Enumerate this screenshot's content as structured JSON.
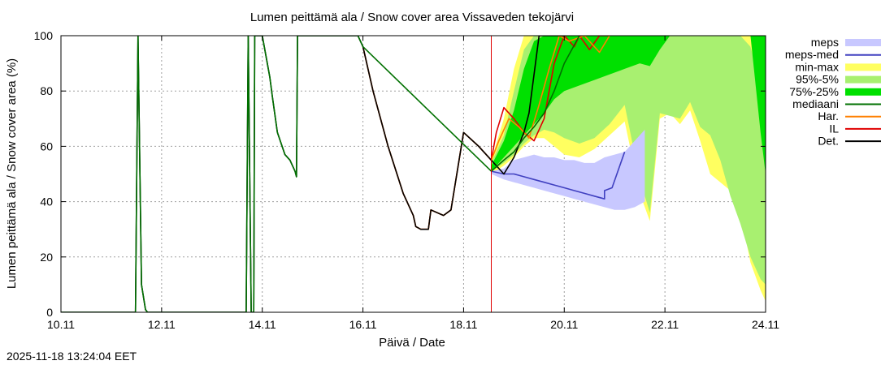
{
  "chart_data": {
    "type": "area",
    "title": "Lumen peittämä ala / Snow cover area Vissaveden tekojärvi",
    "xlabel": "Päivä / Date",
    "ylabel": "Lumen peittämä ala / Snow cover area (%)",
    "xlim_days": [
      0,
      14
    ],
    "ylim": [
      0,
      100
    ],
    "x_ticks": [
      {
        "day": 0,
        "label": "10.11"
      },
      {
        "day": 2,
        "label": "12.11"
      },
      {
        "day": 4,
        "label": "14.11"
      },
      {
        "day": 6,
        "label": "16.11"
      },
      {
        "day": 8,
        "label": "18.11"
      },
      {
        "day": 10,
        "label": "20.11"
      },
      {
        "day": 12,
        "label": "22.11"
      },
      {
        "day": 14,
        "label": "24.11"
      }
    ],
    "y_ticks": [
      0,
      20,
      40,
      60,
      80,
      100
    ],
    "grid": true,
    "forecast_start_day": 8.55,
    "forecast_line_color": "#e00000",
    "legend_position": "right",
    "legend": [
      {
        "label": "meps",
        "kind": "band",
        "color": "#c8c8ff"
      },
      {
        "label": "meps-med",
        "kind": "line",
        "color": "#4040c0"
      },
      {
        "label": "min-max",
        "kind": "band",
        "color": "#ffff60"
      },
      {
        "label": "95%-5%",
        "kind": "band",
        "color": "#a8f070"
      },
      {
        "label": "75%-25%",
        "kind": "band",
        "color": "#00e000"
      },
      {
        "label": "mediaani",
        "kind": "line",
        "color": "#007000"
      },
      {
        "label": "Har.",
        "kind": "line",
        "color": "#ff8000"
      },
      {
        "label": "IL",
        "kind": "line",
        "color": "#e00000"
      },
      {
        "label": "Det.",
        "kind": "line",
        "color": "#000000"
      }
    ],
    "bands": {
      "min_max": {
        "x": [
          8.55,
          8.8,
          9.0,
          9.2,
          9.4,
          9.6,
          9.8,
          10.0,
          10.3,
          10.6,
          10.9,
          11.2,
          11.5,
          11.7,
          11.9,
          12.1,
          12.3,
          12.5,
          12.7,
          12.9,
          13.1,
          13.3,
          13.5,
          13.7,
          13.9,
          14.0
        ],
        "lower": [
          50,
          53,
          56,
          60,
          63,
          63,
          60,
          57,
          56,
          59,
          64,
          69,
          43,
          33,
          70,
          72,
          68,
          73,
          62,
          50,
          47,
          44,
          36,
          18,
          8,
          4
        ],
        "upper": [
          55,
          70,
          88,
          100,
          100,
          100,
          100,
          100,
          100,
          100,
          100,
          100,
          100,
          100,
          100,
          100,
          100,
          100,
          100,
          100,
          100,
          100,
          100,
          100,
          100,
          100
        ]
      },
      "p95_p5": {
        "x": [
          8.55,
          8.8,
          9.0,
          9.2,
          9.4,
          9.6,
          9.8,
          10.0,
          10.3,
          10.6,
          10.9,
          11.2,
          11.5,
          11.7,
          11.9,
          12.1,
          12.3,
          12.5,
          12.7,
          12.9,
          13.1,
          13.3,
          13.5,
          13.7,
          13.9,
          14.0
        ],
        "lower": [
          51,
          54,
          57,
          61,
          64,
          66,
          65,
          63,
          61,
          63,
          68,
          75,
          48,
          36,
          72,
          71,
          70,
          76,
          67,
          64,
          55,
          42,
          32,
          20,
          12,
          10
        ],
        "upper": [
          54,
          64,
          80,
          95,
          100,
          100,
          100,
          100,
          100,
          100,
          100,
          100,
          100,
          100,
          100,
          100,
          100,
          100,
          100,
          100,
          100,
          100,
          100,
          96,
          82,
          72
        ]
      },
      "p75_p25": {
        "x": [
          8.55,
          8.8,
          9.0,
          9.2,
          9.4,
          9.6,
          9.8,
          10.0,
          10.3,
          10.6,
          10.9,
          11.2,
          11.5,
          11.7,
          11.9,
          12.1,
          12.3,
          12.5,
          12.7,
          12.9,
          13.1,
          13.3,
          13.5,
          13.7,
          13.9,
          14.0
        ],
        "lower": [
          51,
          56,
          60,
          64,
          68,
          72,
          77,
          80,
          82,
          84,
          86,
          88,
          90,
          89,
          95,
          100,
          100,
          100,
          100,
          100,
          100,
          100,
          100,
          100,
          65,
          50
        ],
        "upper": [
          53,
          62,
          73,
          88,
          98,
          100,
          100,
          100,
          100,
          100,
          100,
          100,
          100,
          100,
          100,
          100,
          100,
          100,
          100,
          100,
          100,
          100,
          100,
          100,
          100,
          100
        ]
      },
      "meps": {
        "x": [
          8.55,
          8.8,
          9.0,
          9.2,
          9.4,
          9.6,
          9.8,
          10.0,
          10.2,
          10.4,
          10.6,
          10.8,
          11.0,
          11.2,
          11.4,
          11.6
        ],
        "lower": [
          50,
          48,
          47,
          46,
          45,
          44,
          43,
          42,
          41,
          40,
          39,
          38,
          37,
          37,
          38,
          40
        ],
        "upper": [
          51,
          52,
          55,
          56,
          57,
          56,
          56,
          55,
          55,
          54,
          54,
          56,
          57,
          58,
          62,
          66
        ]
      }
    },
    "series": [
      {
        "name": "Det.",
        "color": "#000000",
        "x": [
          0,
          1.48,
          1.53,
          1.6,
          1.68,
          1.72,
          3.68,
          3.72,
          3.78,
          3.83,
          3.85,
          3.88,
          4.0,
          4.15,
          4.2,
          4.3,
          4.45,
          4.55,
          4.6,
          4.65,
          4.68,
          4.7,
          4.9,
          5.2,
          5.9,
          6.0,
          6.2,
          6.5,
          6.8,
          7.0,
          7.05,
          7.15,
          7.3,
          7.35,
          7.6,
          7.75,
          8.0,
          8.3,
          8.55,
          8.8,
          9.0,
          9.2,
          9.3,
          9.5,
          9.8,
          10.0
        ],
        "y": [
          0,
          0,
          100,
          10,
          1,
          0,
          0,
          100,
          0,
          0,
          100,
          100,
          100,
          85,
          78,
          65,
          57,
          55,
          53,
          51,
          49,
          100,
          100,
          100,
          100,
          96,
          80,
          60,
          43,
          35,
          31,
          30,
          30,
          37,
          35,
          37,
          65,
          60,
          55,
          50,
          56,
          65,
          72,
          100,
          100,
          100
        ]
      },
      {
        "name": "mediaani",
        "color": "#007000",
        "x": [
          0,
          1.48,
          1.53,
          1.6,
          1.68,
          1.72,
          3.68,
          3.72,
          3.78,
          3.83,
          3.85,
          3.88,
          4.0,
          4.15,
          4.2,
          4.3,
          4.45,
          4.55,
          4.6,
          4.65,
          4.68,
          4.7,
          4.9,
          5.2,
          5.9,
          6.0,
          8.55,
          8.8,
          9.0,
          9.2,
          9.4,
          9.6,
          9.8,
          10.0,
          10.3
        ],
        "y": [
          0,
          0,
          100,
          10,
          1,
          0,
          0,
          100,
          0,
          0,
          100,
          100,
          100,
          85,
          78,
          65,
          57,
          55,
          53,
          51,
          49,
          100,
          100,
          100,
          100,
          96,
          51,
          55,
          58,
          63,
          67,
          72,
          80,
          90,
          100
        ]
      },
      {
        "name": "Har.",
        "color": "#ff8000",
        "x": [
          6.0,
          6.2,
          6.5,
          6.8,
          7.0,
          7.05,
          7.15,
          7.3,
          7.35,
          7.6,
          7.75,
          8.0,
          8.3,
          8.55,
          8.7,
          8.9,
          9.1,
          9.3,
          9.5,
          9.7,
          9.9,
          10.1,
          10.4,
          10.7,
          10.9
        ],
        "y": [
          96,
          80,
          60,
          43,
          35,
          31,
          30,
          30,
          37,
          35,
          37,
          65,
          60,
          55,
          62,
          70,
          67,
          63,
          75,
          88,
          100,
          98,
          100,
          94,
          100
        ]
      },
      {
        "name": "IL",
        "color": "#e00000",
        "x": [
          6.0,
          6.2,
          6.5,
          6.8,
          7.0,
          7.05,
          7.15,
          7.3,
          7.35,
          7.6,
          7.75,
          8.0,
          8.3,
          8.55,
          8.65,
          8.8,
          9.0,
          9.2,
          9.4,
          9.6,
          9.8,
          10.0,
          10.2,
          10.3,
          10.5,
          10.7,
          10.9
        ],
        "y": [
          96,
          80,
          60,
          43,
          35,
          31,
          30,
          30,
          37,
          35,
          37,
          65,
          60,
          55,
          65,
          74,
          70,
          65,
          62,
          70,
          90,
          100,
          96,
          100,
          95,
          100,
          100
        ]
      },
      {
        "name": "meps-med",
        "color": "#4040c0",
        "x": [
          8.55,
          8.8,
          9.0,
          9.2,
          9.4,
          9.6,
          9.8,
          10.0,
          10.2,
          10.4,
          10.6,
          10.8,
          10.8,
          10.95,
          11.2
        ],
        "y": [
          51,
          50,
          50,
          49,
          48,
          47,
          46,
          45,
          44,
          43,
          42,
          41,
          44,
          45,
          58
        ]
      }
    ]
  },
  "footer": {
    "timestamp": "2025-11-18 13:24:04 EET"
  }
}
